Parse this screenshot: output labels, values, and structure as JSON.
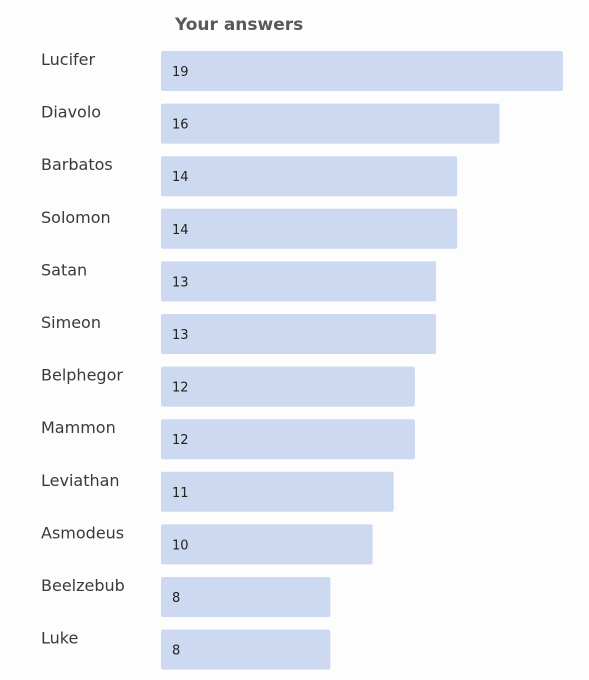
{
  "chart_data": {
    "type": "bar",
    "orientation": "horizontal",
    "title": "Your answers",
    "categories": [
      "Lucifer",
      "Diavolo",
      "Barbatos",
      "Solomon",
      "Satan",
      "Simeon",
      "Belphegor",
      "Mammon",
      "Leviathan",
      "Asmodeus",
      "Beelzebub",
      "Luke"
    ],
    "values": [
      19,
      16,
      14,
      14,
      13,
      13,
      12,
      12,
      11,
      10,
      8,
      8
    ],
    "xlim": [
      0,
      19
    ],
    "grid": false,
    "legend": "none",
    "data_labels": "inside-left",
    "colors": {
      "bar": "#ccd9f0",
      "background": "#fdfdfd"
    }
  }
}
